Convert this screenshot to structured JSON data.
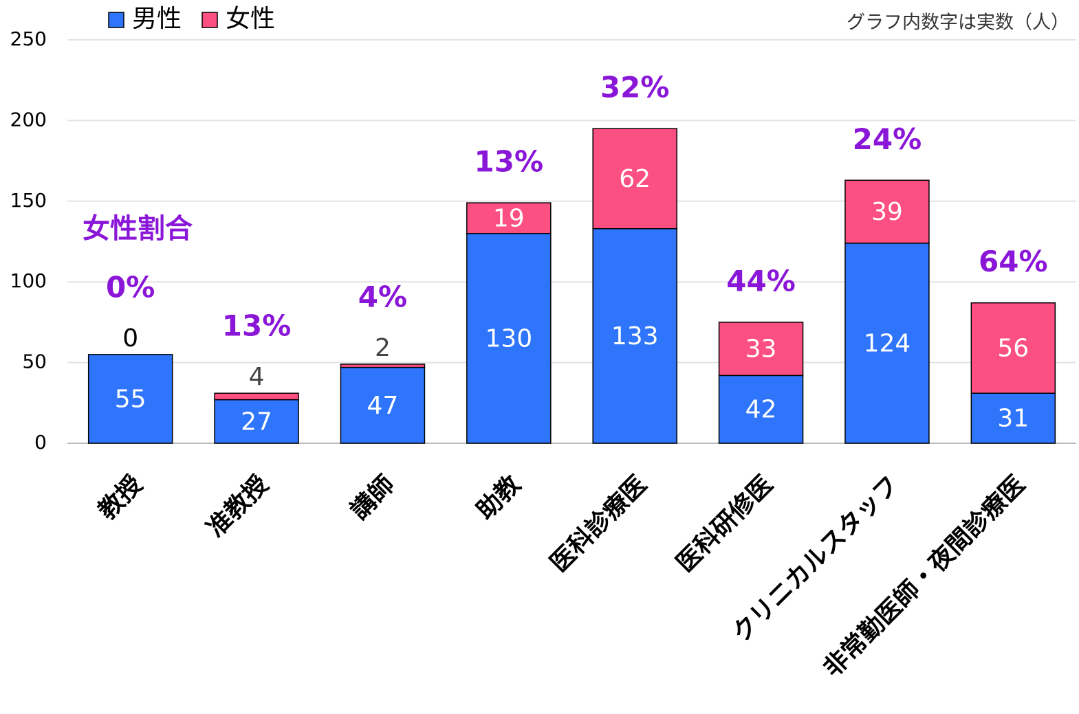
{
  "chart_data": {
    "type": "bar",
    "stacked": true,
    "categories": [
      "教授",
      "准教授",
      "講師",
      "助教",
      "医科診療医",
      "医科研修医",
      "クリニカルスタッフ",
      "非常勤医師・夜間診療医"
    ],
    "series": [
      {
        "name": "男性",
        "color": "#2e75fb",
        "values": [
          55,
          27,
          47,
          130,
          133,
          42,
          124,
          31
        ]
      },
      {
        "name": "女性",
        "color": "#fc4f82",
        "values": [
          0,
          4,
          2,
          19,
          62,
          33,
          39,
          56
        ]
      }
    ],
    "ratio_title": "女性割合",
    "ratio_labels": [
      "0%",
      "13%",
      "4%",
      "13%",
      "32%",
      "44%",
      "24%",
      "64%"
    ],
    "note": "グラフ内数字は実数（人）",
    "ylim": [
      0,
      250
    ],
    "yticks": [
      0,
      50,
      100,
      150,
      200,
      250
    ],
    "grid": true,
    "legend": "top-left"
  }
}
